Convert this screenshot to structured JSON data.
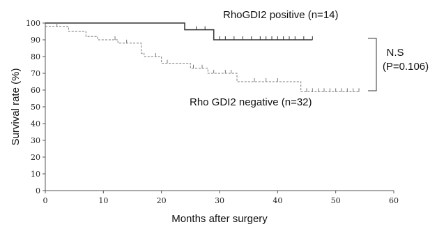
{
  "chart_data": {
    "type": "line",
    "xlabel": "Months after surgery",
    "ylabel": "Survival rate (%)",
    "xlim": [
      0,
      60
    ],
    "ylim": [
      0,
      100
    ],
    "xticks": [
      0,
      10,
      20,
      30,
      40,
      50,
      60
    ],
    "yticks": [
      0,
      10,
      20,
      30,
      40,
      50,
      60,
      70,
      80,
      90,
      100
    ],
    "grid": false,
    "series": [
      {
        "name": "RhoGDI2 positive (n=14)",
        "style": "solid",
        "color": "#333333",
        "steps": [
          [
            0,
            100
          ],
          [
            24,
            100
          ],
          [
            24,
            96
          ],
          [
            29,
            96
          ],
          [
            29,
            90
          ],
          [
            46,
            90
          ]
        ],
        "censored": [
          [
            26,
            96
          ],
          [
            27.5,
            96
          ],
          [
            30,
            90
          ],
          [
            31,
            90
          ],
          [
            32.5,
            90
          ],
          [
            34,
            90
          ],
          [
            35.5,
            90
          ],
          [
            37,
            90
          ],
          [
            38,
            90
          ],
          [
            39,
            90
          ],
          [
            40,
            90
          ],
          [
            41,
            90
          ],
          [
            42,
            90
          ],
          [
            43,
            90
          ],
          [
            44.5,
            90
          ],
          [
            46,
            90
          ]
        ]
      },
      {
        "name": "Rho GDI2 negative (n=32)",
        "style": "dashed",
        "color": "#777777",
        "steps": [
          [
            0,
            98
          ],
          [
            4,
            98
          ],
          [
            4,
            95
          ],
          [
            7,
            95
          ],
          [
            7,
            92
          ],
          [
            9,
            92
          ],
          [
            9,
            90
          ],
          [
            12.5,
            90
          ],
          [
            12.5,
            88
          ],
          [
            16.5,
            88
          ],
          [
            16.5,
            82
          ],
          [
            17,
            82
          ],
          [
            17,
            80
          ],
          [
            20,
            80
          ],
          [
            20,
            76
          ],
          [
            25,
            76
          ],
          [
            25,
            73
          ],
          [
            28,
            73
          ],
          [
            28,
            70
          ],
          [
            33,
            70
          ],
          [
            33,
            65
          ],
          [
            44,
            65
          ],
          [
            44,
            59
          ],
          [
            54,
            59
          ]
        ],
        "censored": [
          [
            2,
            98
          ],
          [
            12,
            90
          ],
          [
            14,
            88
          ],
          [
            19,
            80
          ],
          [
            21,
            76
          ],
          [
            25.5,
            73
          ],
          [
            27,
            73
          ],
          [
            29,
            70
          ],
          [
            31,
            70
          ],
          [
            32,
            70
          ],
          [
            36,
            65
          ],
          [
            38,
            65
          ],
          [
            40,
            65
          ],
          [
            45,
            59
          ],
          [
            46,
            59
          ],
          [
            47,
            59
          ],
          [
            48,
            59
          ],
          [
            49,
            59
          ],
          [
            50,
            59
          ],
          [
            51,
            59
          ],
          [
            52,
            59
          ],
          [
            53,
            59
          ],
          [
            54,
            59
          ]
        ]
      }
    ],
    "annotations": {
      "positive_label": "RhoGDI2 positive (n=14)",
      "negative_label": "Rho GDI2 negative (n=32)",
      "significance": "N.S",
      "p_value": "(P=0.106)"
    }
  }
}
